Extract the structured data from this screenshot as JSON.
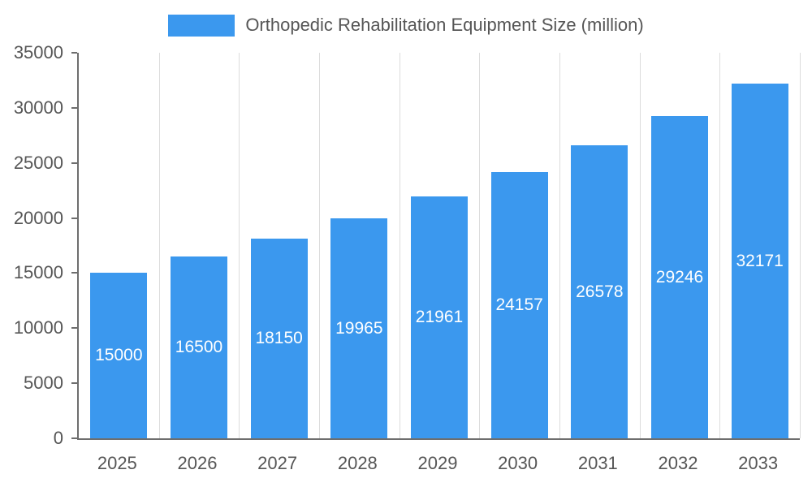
{
  "chart_data": {
    "type": "bar",
    "title": "Orthopedic Rehabilitation Equipment Size (million)",
    "categories": [
      "2025",
      "2026",
      "2027",
      "2028",
      "2029",
      "2030",
      "2031",
      "2032",
      "2033"
    ],
    "values": [
      15000,
      16500,
      18150,
      19965,
      21961,
      24157,
      26578,
      29246,
      32171
    ],
    "xlabel": "",
    "ylabel": "",
    "ylim": [
      0,
      35000
    ],
    "ytick_step": 5000,
    "grid": true,
    "legend_position": "top",
    "colors": {
      "bar": "#3b98ee",
      "bar_label": "#ffffff",
      "axis_text": "#565656",
      "axis_line": "#6e6e6e",
      "gridline": "#dcdcdc",
      "background": "#ffffff"
    }
  }
}
